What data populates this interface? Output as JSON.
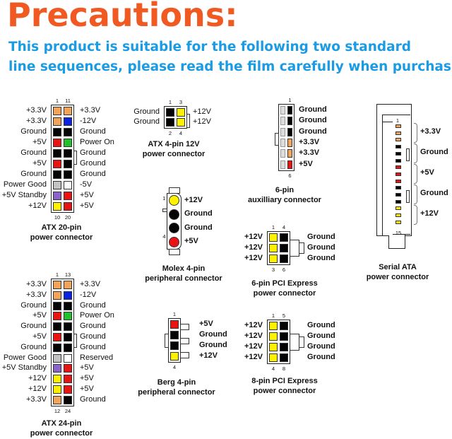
{
  "header": {
    "title": "Precautions:",
    "subtitle_line1": "This product is suitable for the following two standard",
    "subtitle_line2": "line sequences, please read the film carefully when purchasing"
  },
  "colors": {
    "orange": "#f2a55a",
    "blue": "#0a22e6",
    "black": "#050505",
    "red": "#e81414",
    "green": "#22c02a",
    "gray": "#c4c4c4",
    "white": "#ffffff",
    "purple": "#8a64c8",
    "yellow": "#fff200",
    "title": "#f05a22",
    "subtitle": "#1a9be3"
  },
  "connectors": {
    "atx20": {
      "caption": [
        "ATX 20-pin",
        "power connector"
      ],
      "numbers_top": [
        "1",
        "11"
      ],
      "numbers_bottom": [
        "10",
        "20"
      ],
      "rows": [
        {
          "left": "+3.3V",
          "pins": [
            "orange",
            "orange"
          ],
          "right": "+3.3V"
        },
        {
          "left": "+3.3V",
          "pins": [
            "orange",
            "blue"
          ],
          "right": "-12V"
        },
        {
          "left": "Ground",
          "pins": [
            "black",
            "black"
          ],
          "right": "Ground"
        },
        {
          "left": "+5V",
          "pins": [
            "red",
            "green"
          ],
          "right": "Power On"
        },
        {
          "left": "Ground",
          "pins": [
            "black",
            "black"
          ],
          "right": "Ground"
        },
        {
          "left": "+5V",
          "pins": [
            "red",
            "black"
          ],
          "right": "Ground"
        },
        {
          "left": "Ground",
          "pins": [
            "black",
            "black"
          ],
          "right": "Ground"
        },
        {
          "left": "Power Good",
          "pins": [
            "gray",
            "white"
          ],
          "right": "-5V"
        },
        {
          "left": "+5V Standby",
          "pins": [
            "purple",
            "red"
          ],
          "right": "+5V"
        },
        {
          "left": "+12V",
          "pins": [
            "yellow",
            "red"
          ],
          "right": "+5V"
        }
      ]
    },
    "atx24": {
      "caption": [
        "ATX 24-pin",
        "power connector"
      ],
      "numbers_top": [
        "1",
        "13"
      ],
      "numbers_bottom": [
        "12",
        "24"
      ],
      "rows": [
        {
          "left": "+3.3V",
          "pins": [
            "orange",
            "orange"
          ],
          "right": "+3.3V"
        },
        {
          "left": "+3.3V",
          "pins": [
            "orange",
            "blue"
          ],
          "right": "-12V"
        },
        {
          "left": "Ground",
          "pins": [
            "black",
            "black"
          ],
          "right": "Ground"
        },
        {
          "left": "+5V",
          "pins": [
            "red",
            "green"
          ],
          "right": "Power On"
        },
        {
          "left": "Ground",
          "pins": [
            "black",
            "black"
          ],
          "right": "Ground"
        },
        {
          "left": "+5V",
          "pins": [
            "red",
            "black"
          ],
          "right": "Ground"
        },
        {
          "left": "Ground",
          "pins": [
            "black",
            "black"
          ],
          "right": "Ground"
        },
        {
          "left": "Power Good",
          "pins": [
            "gray",
            "white"
          ],
          "right": "Reserved"
        },
        {
          "left": "+5V Standby",
          "pins": [
            "purple",
            "red"
          ],
          "right": "+5V"
        },
        {
          "left": "+12V",
          "pins": [
            "yellow",
            "red"
          ],
          "right": "+5V"
        },
        {
          "left": "+12V",
          "pins": [
            "yellow",
            "red"
          ],
          "right": "+5V"
        },
        {
          "left": "+3.3V",
          "pins": [
            "orange",
            "black"
          ],
          "right": "Ground"
        }
      ]
    },
    "atx4": {
      "caption": [
        "ATX 4-pin 12V",
        "power connector"
      ],
      "numbers_top": [
        "1",
        "3"
      ],
      "numbers_bottom": [
        "2",
        "4"
      ],
      "rows": [
        {
          "left": "Ground",
          "pins": [
            "black",
            "yellow"
          ],
          "right": "+12V"
        },
        {
          "left": "Ground",
          "pins": [
            "black",
            "yellow"
          ],
          "right": "+12V"
        }
      ]
    },
    "aux6": {
      "caption": [
        "6-pin",
        "auxilliary connector"
      ],
      "numbers_top": [
        "1"
      ],
      "numbers_bottom": [
        "6"
      ],
      "rows": [
        {
          "left": "",
          "pins": [
            "black"
          ],
          "right": "Ground"
        },
        {
          "left": "",
          "pins": [
            "black"
          ],
          "right": "Ground"
        },
        {
          "left": "",
          "pins": [
            "black"
          ],
          "right": "Ground"
        },
        {
          "left": "",
          "pins": [
            "orange"
          ],
          "right": "+3.3V"
        },
        {
          "left": "",
          "pins": [
            "orange"
          ],
          "right": "+3.3V"
        },
        {
          "left": "",
          "pins": [
            "red"
          ],
          "right": "+5V"
        }
      ]
    },
    "molex": {
      "caption": [
        "Molex 4-pin",
        "peripheral connector"
      ],
      "numbers_top": [
        "1"
      ],
      "numbers_bottom": [
        "4"
      ],
      "rows": [
        {
          "left": "",
          "pins": [
            "yellow"
          ],
          "right": "+12V"
        },
        {
          "left": "",
          "pins": [
            "black"
          ],
          "right": "Ground"
        },
        {
          "left": "",
          "pins": [
            "black"
          ],
          "right": "Ground"
        },
        {
          "left": "",
          "pins": [
            "red"
          ],
          "right": "+5V"
        }
      ]
    },
    "pcie6": {
      "caption": [
        "6-pin PCI Express",
        "power connector"
      ],
      "numbers_top": [
        "1",
        "4"
      ],
      "numbers_bottom": [
        "3",
        "6"
      ],
      "rows": [
        {
          "left": "+12V",
          "pins": [
            "yellow",
            "black"
          ],
          "right": "Ground"
        },
        {
          "left": "+12V",
          "pins": [
            "yellow",
            "black"
          ],
          "right": "Ground"
        },
        {
          "left": "+12V",
          "pins": [
            "yellow",
            "black"
          ],
          "right": "Ground"
        }
      ]
    },
    "berg": {
      "caption": [
        "Berg 4-pin",
        "peripheral connector"
      ],
      "numbers_top": [
        "1"
      ],
      "numbers_bottom": [
        "4"
      ],
      "rows": [
        {
          "left": "",
          "pins": [
            "red"
          ],
          "right": "+5V"
        },
        {
          "left": "",
          "pins": [
            "black"
          ],
          "right": "Ground"
        },
        {
          "left": "",
          "pins": [
            "black"
          ],
          "right": "Ground"
        },
        {
          "left": "",
          "pins": [
            "yellow"
          ],
          "right": "+12V"
        }
      ]
    },
    "pcie8": {
      "caption": [
        "8-pin PCI Express",
        "power connector"
      ],
      "numbers_top": [
        "1",
        "5"
      ],
      "numbers_bottom": [
        "4",
        "8"
      ],
      "rows": [
        {
          "left": "+12V",
          "pins": [
            "yellow",
            "black"
          ],
          "right": "Ground"
        },
        {
          "left": "+12V",
          "pins": [
            "yellow",
            "black"
          ],
          "right": "Ground"
        },
        {
          "left": "+12V",
          "pins": [
            "yellow",
            "black"
          ],
          "right": "Ground"
        },
        {
          "left": "+12V",
          "pins": [
            "yellow",
            "black"
          ],
          "right": "Ground"
        }
      ]
    },
    "sata": {
      "caption": [
        "Serial ATA",
        "power connector"
      ],
      "numbers_top": [
        "1"
      ],
      "numbers_bottom": [
        "15"
      ],
      "groups": [
        {
          "label": "+3.3V",
          "pins": [
            "orange",
            "orange",
            "orange"
          ]
        },
        {
          "label": "Ground",
          "pins": [
            "black",
            "black",
            "black"
          ]
        },
        {
          "label": "+5V",
          "pins": [
            "red",
            "red",
            "red"
          ]
        },
        {
          "label": "Ground",
          "pins": [
            "black",
            "black",
            "black"
          ]
        },
        {
          "label": "+12V",
          "pins": [
            "yellow",
            "yellow",
            "yellow"
          ]
        }
      ]
    }
  }
}
